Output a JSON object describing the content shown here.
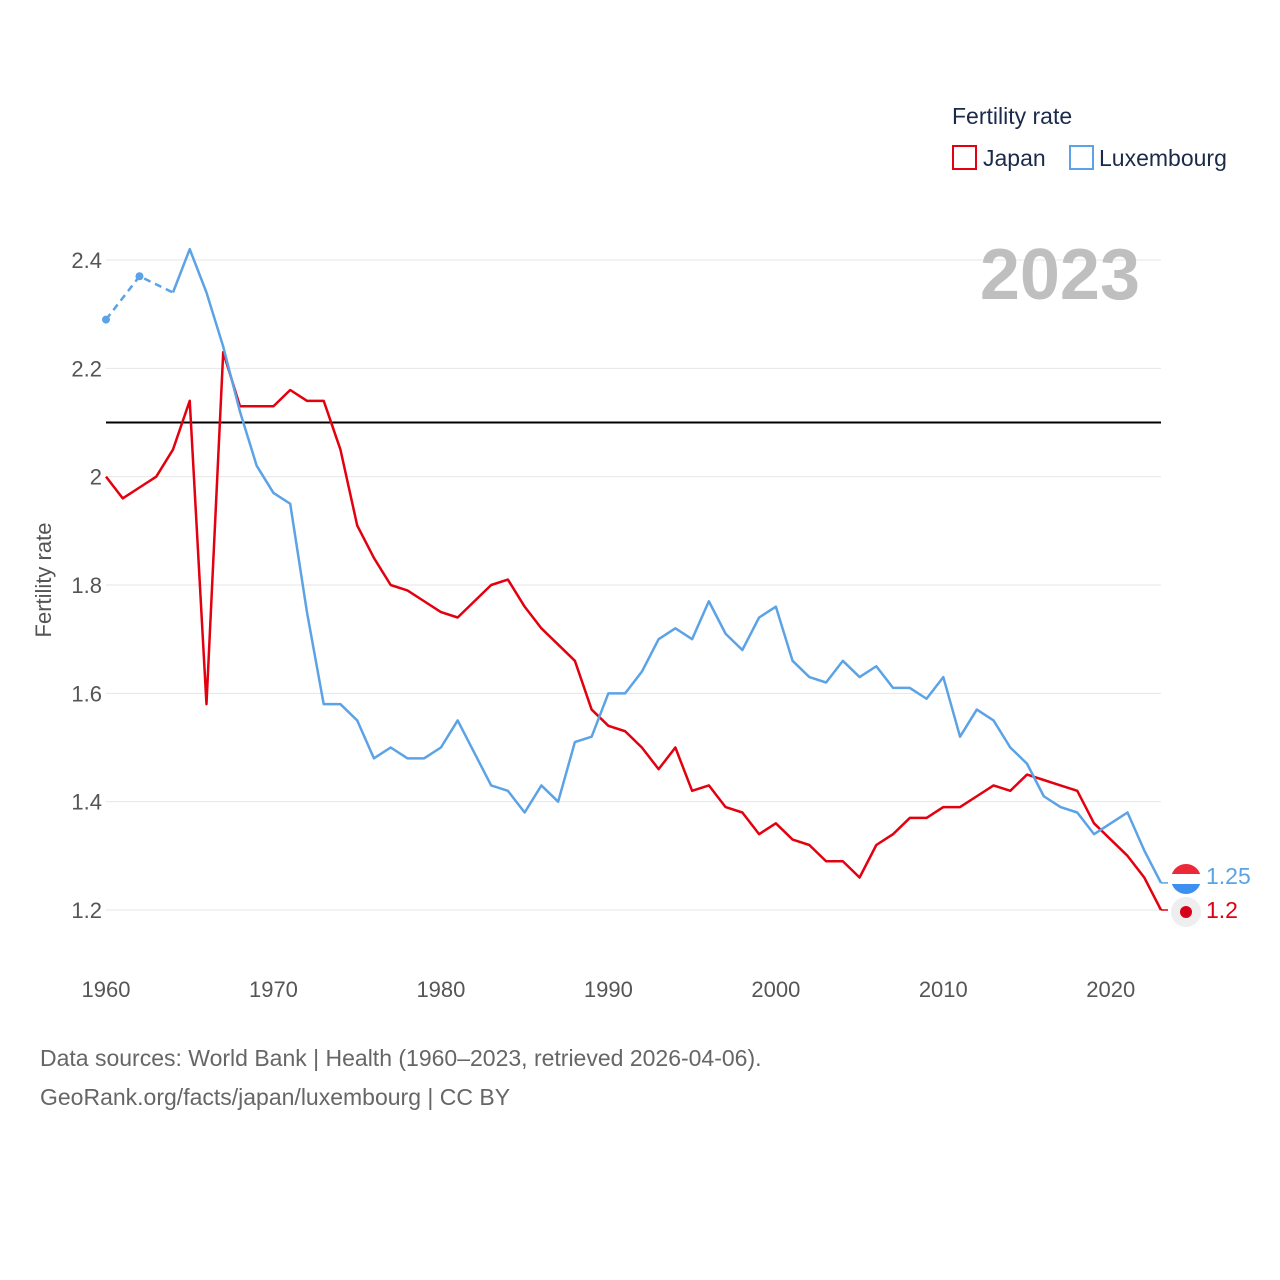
{
  "chart_data": {
    "type": "line",
    "ylabel": "Fertility rate",
    "legend_title": "Fertility rate",
    "legend_position": "top-right",
    "current_year": "2023",
    "ylim": [
      1.1,
      2.45
    ],
    "xlim": [
      1960,
      2023
    ],
    "yticks": [
      1.2,
      1.4,
      1.6,
      1.8,
      2,
      2.2,
      2.4
    ],
    "ytick_labels": [
      "1.2",
      "1.4",
      "1.6",
      "1.8",
      "2",
      "2.2",
      "2.4"
    ],
    "xticks": [
      1960,
      1970,
      1980,
      1990,
      2000,
      2010,
      2020
    ],
    "xtick_labels": [
      "1960",
      "1970",
      "1980",
      "1990",
      "2000",
      "2010",
      "2020"
    ],
    "reference_line": 2.1,
    "grid": true,
    "series": [
      {
        "name": "Japan",
        "color": "#e3000f",
        "end_label": "1.2",
        "x": [
          1960,
          1961,
          1962,
          1963,
          1964,
          1965,
          1966,
          1967,
          1968,
          1969,
          1970,
          1971,
          1972,
          1973,
          1974,
          1975,
          1976,
          1977,
          1978,
          1979,
          1980,
          1981,
          1982,
          1983,
          1984,
          1985,
          1986,
          1987,
          1988,
          1989,
          1990,
          1991,
          1992,
          1993,
          1994,
          1995,
          1996,
          1997,
          1998,
          1999,
          2000,
          2001,
          2002,
          2003,
          2004,
          2005,
          2006,
          2007,
          2008,
          2009,
          2010,
          2011,
          2012,
          2013,
          2014,
          2015,
          2016,
          2017,
          2018,
          2019,
          2020,
          2021,
          2022,
          2023
        ],
        "values": [
          2.0,
          1.96,
          1.98,
          2.0,
          2.05,
          2.14,
          1.58,
          2.23,
          2.13,
          2.13,
          2.13,
          2.16,
          2.14,
          2.14,
          2.05,
          1.91,
          1.85,
          1.8,
          1.79,
          1.77,
          1.75,
          1.74,
          1.77,
          1.8,
          1.81,
          1.76,
          1.72,
          1.69,
          1.66,
          1.57,
          1.54,
          1.53,
          1.5,
          1.46,
          1.5,
          1.42,
          1.43,
          1.39,
          1.38,
          1.34,
          1.36,
          1.33,
          1.32,
          1.29,
          1.29,
          1.26,
          1.32,
          1.34,
          1.37,
          1.37,
          1.39,
          1.39,
          1.41,
          1.43,
          1.42,
          1.45,
          1.44,
          1.43,
          1.42,
          1.36,
          1.33,
          1.3,
          1.26,
          1.2
        ]
      },
      {
        "name": "Luxembourg",
        "color": "#5ba3e6",
        "end_label": "1.25",
        "x": [
          1960,
          1962,
          1964,
          1965,
          1966,
          1967,
          1968,
          1969,
          1970,
          1971,
          1972,
          1973,
          1974,
          1975,
          1976,
          1977,
          1978,
          1979,
          1980,
          1981,
          1982,
          1983,
          1984,
          1985,
          1986,
          1987,
          1988,
          1989,
          1990,
          1991,
          1992,
          1993,
          1994,
          1995,
          1996,
          1997,
          1998,
          1999,
          2000,
          2001,
          2002,
          2003,
          2004,
          2005,
          2006,
          2007,
          2008,
          2009,
          2010,
          2011,
          2012,
          2013,
          2014,
          2015,
          2016,
          2017,
          2018,
          2019,
          2020,
          2021,
          2022,
          2023
        ],
        "values": [
          2.29,
          2.37,
          2.34,
          2.42,
          2.34,
          2.24,
          2.12,
          2.02,
          1.97,
          1.95,
          1.75,
          1.58,
          1.58,
          1.55,
          1.48,
          1.5,
          1.48,
          1.48,
          1.5,
          1.55,
          1.49,
          1.43,
          1.42,
          1.38,
          1.43,
          1.4,
          1.51,
          1.52,
          1.6,
          1.6,
          1.64,
          1.7,
          1.72,
          1.7,
          1.77,
          1.71,
          1.68,
          1.74,
          1.76,
          1.66,
          1.63,
          1.62,
          1.66,
          1.63,
          1.65,
          1.61,
          1.61,
          1.59,
          1.63,
          1.52,
          1.57,
          1.55,
          1.5,
          1.47,
          1.41,
          1.39,
          1.38,
          1.34,
          1.36,
          1.38,
          1.31,
          1.25
        ],
        "interpolated_until": 1964
      }
    ]
  },
  "footer": {
    "line1": "Data sources: World Bank | Health (1960–2023, retrieved 2026-04-06).",
    "line2": "GeoRank.org/facts/japan/luxembourg | CC BY"
  }
}
